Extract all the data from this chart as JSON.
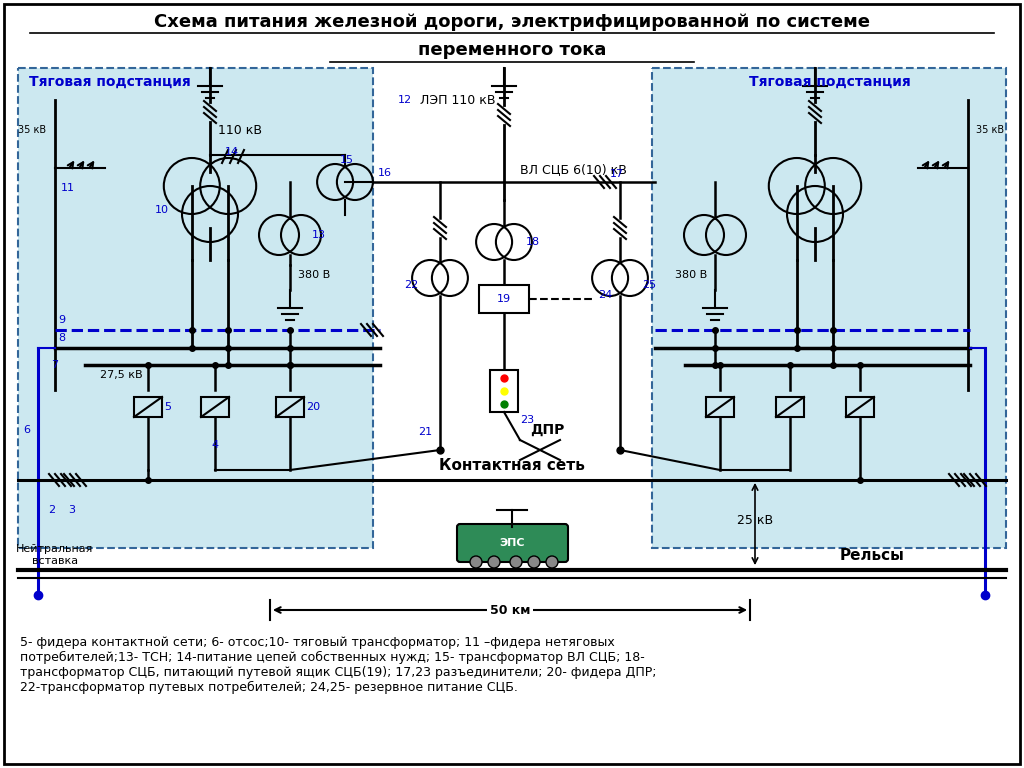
{
  "title_line1": "Схема питания железной дороги, электрифицированной по системе",
  "title_line2": "переменного тока",
  "bg_color": "#cce8f0",
  "white_bg": "#ffffff",
  "text_blue": "#0000cc",
  "text_black": "#000000",
  "footnote": "5- фидера контактной сети; 6- отсос;10- тяговый трансформатор; 11 –фидера нетяговых\nпотребителей;13- ТСН; 14-питание цепей собственных нужд; 15- трансформатор ВЛ СЦБ; 18-\nтрансформатор СЦБ, питающий путевой ящик СЦБ(19); 17,23 разъединители; 20- фидера ДПР;\n22-трансформатор путевых потребителей; 24,25- резервное питание СЦБ.",
  "left_box_label": "Тяговая подстанция",
  "right_box_label": "Тяговая подстанция",
  "label_110kv": "110 кВ",
  "label_380v": "380 В",
  "label_275kv": "27,5 кВ",
  "label_35kv_l": "35 кВ",
  "label_35kv_r": "35 кВ",
  "label_25kv": "25 кВ",
  "label_lep": "ЛЭП 110 кВ",
  "label_vl": "ВЛ СЦБ 6(10) кВ",
  "label_kontakt": "Контактная сеть",
  "label_neytral": "Нейтральная\nвставка",
  "label_relsy": "Рельсы",
  "label_dpr": "ДПР",
  "label_eps": "ЭПС",
  "label_50km": "50 км"
}
